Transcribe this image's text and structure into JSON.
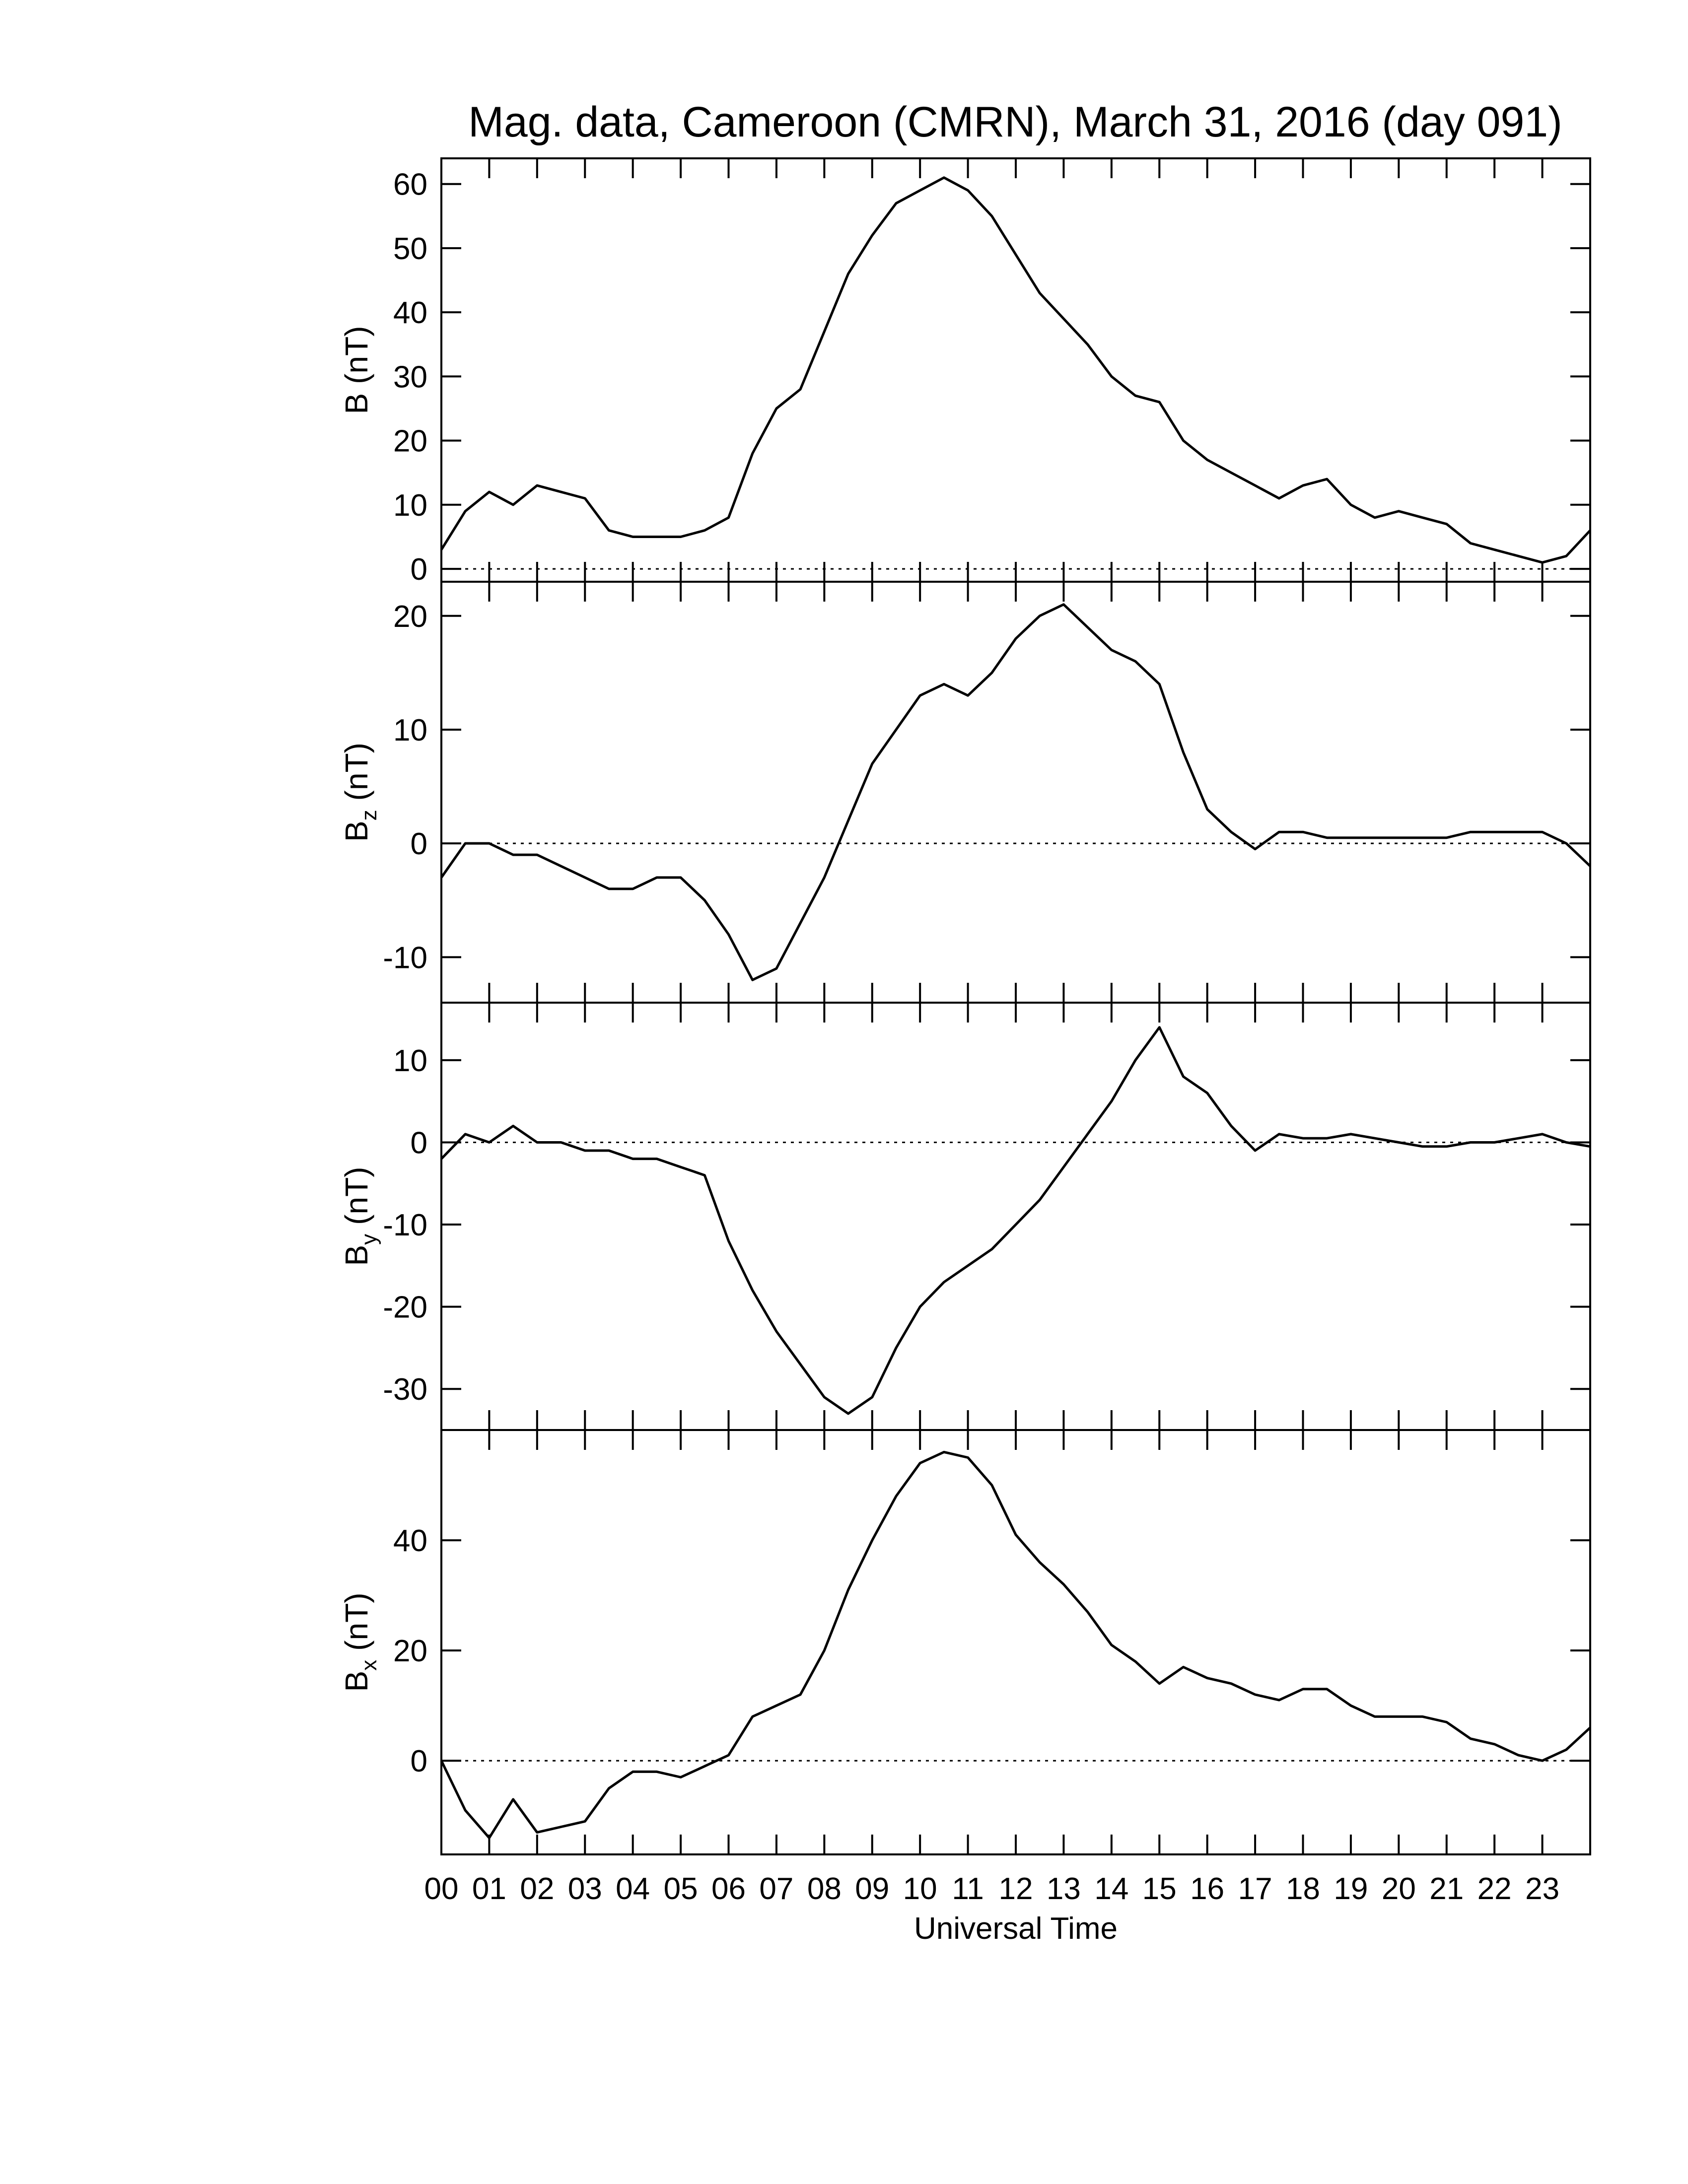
{
  "chart_data": [
    {
      "type": "line",
      "title": "Mag. data, Cameroon (CMRN), March 31, 2016 (day 091)",
      "ylabel": "B",
      "ylabel_unit": "(nT)",
      "color": "#000000",
      "hline": 0,
      "xlim": [
        0,
        24
      ],
      "ylim": [
        -2,
        64
      ],
      "yticks": [
        0,
        10,
        20,
        30,
        40,
        50,
        60
      ],
      "x": [
        0,
        0.5,
        1,
        1.5,
        2,
        2.5,
        3,
        3.5,
        4,
        4.5,
        5,
        5.5,
        6,
        6.5,
        7,
        7.5,
        8,
        8.5,
        9,
        9.5,
        10,
        10.5,
        11,
        11.5,
        12,
        12.5,
        13,
        13.5,
        14,
        14.5,
        15,
        15.5,
        16,
        16.5,
        17,
        17.5,
        18,
        18.5,
        19,
        19.5,
        20,
        20.5,
        21,
        21.5,
        22,
        22.5,
        23,
        23.5,
        24
      ],
      "values": [
        3,
        9,
        12,
        10,
        13,
        12,
        11,
        6,
        5,
        5,
        5,
        6,
        8,
        18,
        25,
        28,
        37,
        46,
        52,
        57,
        59,
        61,
        59,
        55,
        49,
        43,
        39,
        35,
        30,
        27,
        26,
        20,
        17,
        15,
        13,
        11,
        13,
        14,
        10,
        8,
        9,
        8,
        7,
        4,
        3,
        2,
        1,
        2,
        6
      ]
    },
    {
      "type": "line",
      "ylabel": "B",
      "ylabel_subscript": "z",
      "ylabel_unit": "(nT)",
      "color": "#000000",
      "hline": 0,
      "xlim": [
        0,
        24
      ],
      "ylim": [
        -14,
        23
      ],
      "yticks": [
        -10,
        0,
        10,
        20
      ],
      "x": [
        0,
        0.5,
        1,
        1.5,
        2,
        2.5,
        3,
        3.5,
        4,
        4.5,
        5,
        5.5,
        6,
        6.5,
        7,
        7.5,
        8,
        8.5,
        9,
        9.5,
        10,
        10.5,
        11,
        11.5,
        12,
        12.5,
        13,
        13.5,
        14,
        14.5,
        15,
        15.5,
        16,
        16.5,
        17,
        17.5,
        18,
        18.5,
        19,
        19.5,
        20,
        20.5,
        21,
        21.5,
        22,
        22.5,
        23,
        23.5,
        24
      ],
      "values": [
        -3,
        0,
        0,
        -1,
        -1,
        -2,
        -3,
        -4,
        -4,
        -3,
        -3,
        -5,
        -8,
        -12,
        -11,
        -7,
        -3,
        2,
        7,
        10,
        13,
        14,
        13,
        15,
        18,
        20,
        21,
        19,
        17,
        16,
        14,
        8,
        3,
        1,
        -0.5,
        1,
        1,
        0.5,
        0.5,
        0.5,
        0.5,
        0.5,
        0.5,
        1,
        1,
        1,
        1,
        0,
        -2
      ]
    },
    {
      "type": "line",
      "ylabel": "B",
      "ylabel_subscript": "y",
      "ylabel_unit": "(nT)",
      "color": "#000000",
      "hline": 0,
      "xlim": [
        0,
        24
      ],
      "ylim": [
        -35,
        17
      ],
      "yticks": [
        -30,
        -20,
        -10,
        0,
        10
      ],
      "x": [
        0,
        0.5,
        1,
        1.5,
        2,
        2.5,
        3,
        3.5,
        4,
        4.5,
        5,
        5.5,
        6,
        6.5,
        7,
        7.5,
        8,
        8.5,
        9,
        9.5,
        10,
        10.5,
        11,
        11.5,
        12,
        12.5,
        13,
        13.5,
        14,
        14.5,
        15,
        15.5,
        16,
        16.5,
        17,
        17.5,
        18,
        18.5,
        19,
        19.5,
        20,
        20.5,
        21,
        21.5,
        22,
        22.5,
        23,
        23.5,
        24
      ],
      "values": [
        -2,
        1,
        0,
        2,
        0,
        0,
        -1,
        -1,
        -2,
        -2,
        -3,
        -4,
        -12,
        -18,
        -23,
        -27,
        -31,
        -33,
        -31,
        -25,
        -20,
        -17,
        -15,
        -13,
        -10,
        -7,
        -3,
        1,
        5,
        10,
        14,
        8,
        6,
        2,
        -1,
        1,
        0.5,
        0.5,
        1,
        0.5,
        0,
        -0.5,
        -0.5,
        0,
        0,
        0.5,
        1,
        0,
        -0.5
      ]
    },
    {
      "type": "line",
      "ylabel": "B",
      "ylabel_subscript": "x",
      "ylabel_unit": "(nT)",
      "x_label": "Universal Time",
      "color": "#000000",
      "hline": 0,
      "xlim": [
        0,
        24
      ],
      "ylim": [
        -17,
        60
      ],
      "yticks": [
        0,
        20,
        40
      ],
      "xticks": [
        {
          "value": 0,
          "label": "00"
        },
        {
          "value": 1,
          "label": "01"
        },
        {
          "value": 2,
          "label": "02"
        },
        {
          "value": 3,
          "label": "03"
        },
        {
          "value": 4,
          "label": "04"
        },
        {
          "value": 5,
          "label": "05"
        },
        {
          "value": 6,
          "label": "06"
        },
        {
          "value": 7,
          "label": "07"
        },
        {
          "value": 8,
          "label": "08"
        },
        {
          "value": 9,
          "label": "09"
        },
        10,
        11,
        12,
        13,
        14,
        15,
        16,
        17,
        18,
        19,
        20,
        21,
        22,
        23
      ],
      "x": [
        0,
        0.5,
        1,
        1.5,
        2,
        2.5,
        3,
        3.5,
        4,
        4.5,
        5,
        5.5,
        6,
        6.5,
        7,
        7.5,
        8,
        8.5,
        9,
        9.5,
        10,
        10.5,
        11,
        11.5,
        12,
        12.5,
        13,
        13.5,
        14,
        14.5,
        15,
        15.5,
        16,
        16.5,
        17,
        17.5,
        18,
        18.5,
        19,
        19.5,
        20,
        20.5,
        21,
        21.5,
        22,
        22.5,
        23,
        23.5,
        24
      ],
      "values": [
        0,
        -9,
        -14,
        -7,
        -13,
        -12,
        -11,
        -5,
        -2,
        -2,
        -3,
        -1,
        1,
        8,
        10,
        12,
        20,
        31,
        40,
        48,
        54,
        56,
        55,
        50,
        41,
        36,
        32,
        27,
        21,
        18,
        14,
        17,
        15,
        14,
        12,
        11,
        13,
        13,
        10,
        8,
        8,
        8,
        7,
        4,
        3,
        1,
        0,
        2,
        6
      ]
    }
  ]
}
